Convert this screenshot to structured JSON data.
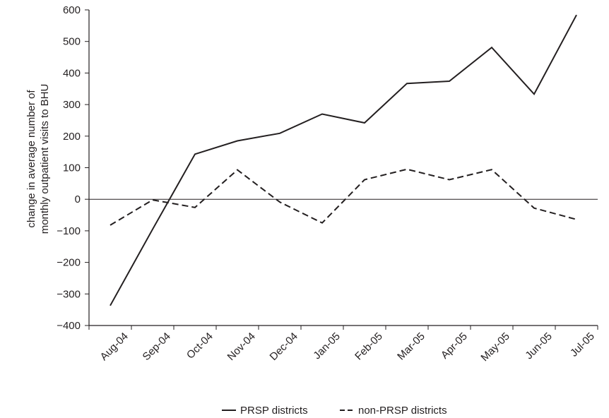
{
  "chart_data": {
    "type": "line",
    "title": "",
    "xlabel": "",
    "ylabel_lines": [
      "change in average number of",
      "monthly outpatient visits to BHU"
    ],
    "categories": [
      "Aug-04",
      "Sep-04",
      "Oct-04",
      "Nov-04",
      "Dec-04",
      "Jan-05",
      "Feb-05",
      "Mar-05",
      "Apr-05",
      "May-05",
      "Jun-05",
      "Jul-05"
    ],
    "ylim": [
      -400,
      600
    ],
    "yticks": [
      600,
      500,
      400,
      300,
      200,
      100,
      0,
      -100,
      -200,
      -300,
      -400
    ],
    "ytick_labels": [
      "600",
      "500",
      "400",
      "300",
      "200",
      "100",
      "0",
      "−100",
      "−200",
      "−300",
      "−400"
    ],
    "zero_line": true,
    "grid": false,
    "legend_position": "bottom-center",
    "series": [
      {
        "name": "PRSP districts",
        "style": "solid",
        "color": "#231f20",
        "values": [
          -337,
          -95,
          143,
          185,
          209,
          270,
          242,
          367,
          374,
          481,
          333,
          584
        ]
      },
      {
        "name": "non-PRSP districts",
        "style": "dashed",
        "color": "#231f20",
        "values": [
          -82,
          -2,
          -26,
          93,
          -9,
          -75,
          62,
          95,
          62,
          94,
          -28,
          -64
        ]
      }
    ]
  }
}
